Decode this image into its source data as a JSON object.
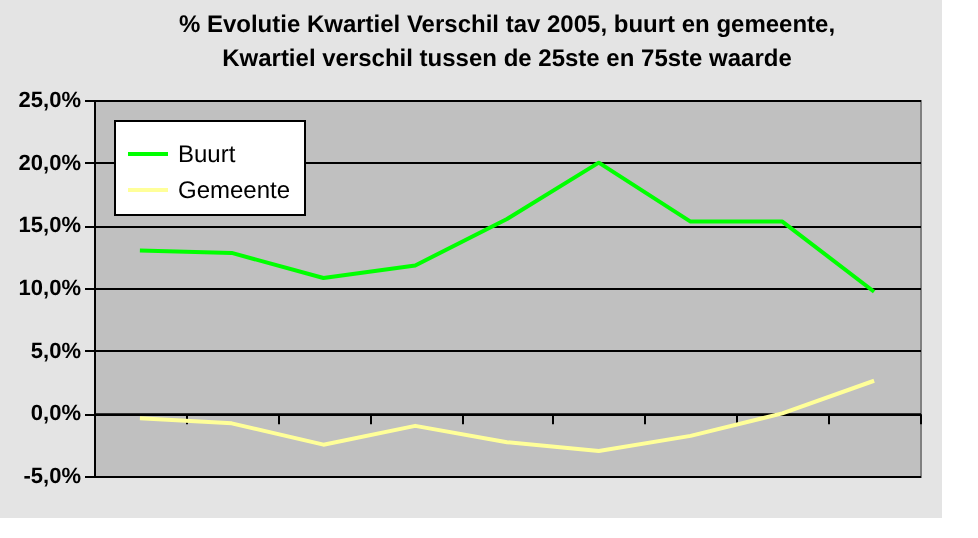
{
  "chart_data": {
    "type": "line",
    "title": "% Evolutie Kwartiel Verschil tav 2005, buurt en gemeente,\nKwartiel verschil tussen de 25ste en 75ste waarde",
    "categories": [
      null,
      null,
      null,
      null,
      null,
      null,
      null,
      null,
      null
    ],
    "series": [
      {
        "name": "Buurt",
        "color": "#00ff00",
        "values": [
          13.0,
          12.8,
          10.8,
          11.8,
          15.5,
          20.0,
          15.3,
          15.3,
          9.7
        ]
      },
      {
        "name": "Gemeente",
        "color": "#ffff99",
        "values": [
          -0.4,
          -0.8,
          -2.5,
          -1.0,
          -2.3,
          -3.0,
          -1.8,
          0.0,
          2.6
        ]
      }
    ],
    "ylim": [
      -5,
      25
    ],
    "yticks": [
      {
        "value": -5,
        "label": "-5,0%"
      },
      {
        "value": 0,
        "label": "0,0%"
      },
      {
        "value": 5,
        "label": "5,0%"
      },
      {
        "value": 10,
        "label": "10,0%"
      },
      {
        "value": 15,
        "label": "15,0%"
      },
      {
        "value": 20,
        "label": "20,0%"
      },
      {
        "value": 25,
        "label": "25,0%"
      }
    ],
    "grid": "y",
    "legend": "top left",
    "marker": "none",
    "line_style": "solid"
  }
}
